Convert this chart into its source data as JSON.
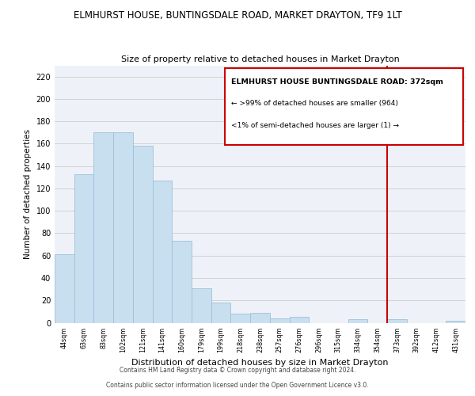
{
  "title": "ELMHURST HOUSE, BUNTINGSDALE ROAD, MARKET DRAYTON, TF9 1LT",
  "subtitle": "Size of property relative to detached houses in Market Drayton",
  "xlabel": "Distribution of detached houses by size in Market Drayton",
  "ylabel": "Number of detached properties",
  "bar_color": "#c8dff0",
  "bar_edge_color": "#a0c0d8",
  "background_color": "#eef2f8",
  "grid_color": "#ffffff",
  "bin_labels": [
    "44sqm",
    "63sqm",
    "83sqm",
    "102sqm",
    "121sqm",
    "141sqm",
    "160sqm",
    "179sqm",
    "199sqm",
    "218sqm",
    "238sqm",
    "257sqm",
    "276sqm",
    "296sqm",
    "315sqm",
    "334sqm",
    "354sqm",
    "373sqm",
    "392sqm",
    "412sqm",
    "431sqm"
  ],
  "bar_heights": [
    61,
    133,
    170,
    170,
    158,
    127,
    73,
    31,
    18,
    8,
    9,
    4,
    5,
    0,
    0,
    3,
    0,
    3,
    0,
    0,
    2
  ],
  "ylim": [
    0,
    230
  ],
  "yticks": [
    0,
    20,
    40,
    60,
    80,
    100,
    120,
    140,
    160,
    180,
    200,
    220
  ],
  "vline_color": "#cc0000",
  "vline_x_index": 17,
  "annotation_title": "ELMHURST HOUSE BUNTINGSDALE ROAD: 372sqm",
  "annotation_line1": "← >99% of detached houses are smaller (964)",
  "annotation_line2": "<1% of semi-detached houses are larger (1) →",
  "footer_line1": "Contains HM Land Registry data © Crown copyright and database right 2024.",
  "footer_line2": "Contains public sector information licensed under the Open Government Licence v3.0."
}
